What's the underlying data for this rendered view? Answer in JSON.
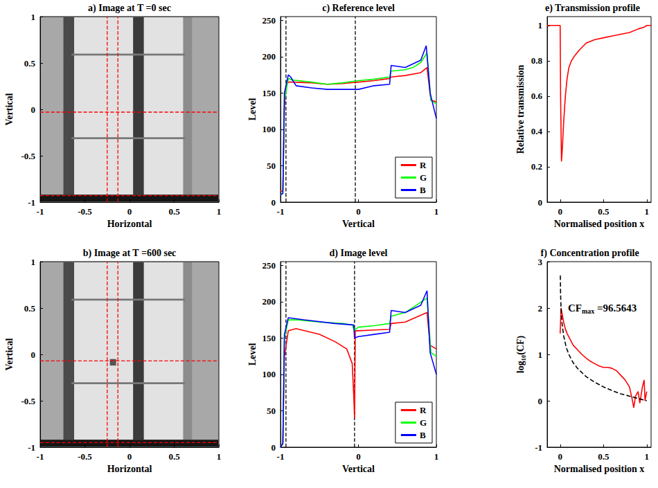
{
  "chart_data": [
    {
      "type": "image",
      "title": "a) Image at T =0 sec",
      "xlabel": "Horizontal",
      "ylabel": "Vertical",
      "xlim": [
        -1,
        1
      ],
      "ylim": [
        -1,
        1
      ],
      "xticks": [
        -1,
        -0.5,
        0,
        0.5,
        1
      ],
      "yticks": [
        -1,
        -0.5,
        0,
        0.5,
        1
      ],
      "grid": false,
      "guides": {
        "vlines": [
          -0.25,
          -0.13
        ],
        "hlines": [
          -0.03,
          -0.93
        ],
        "color": "#ff0000",
        "line_style": "dashed"
      }
    },
    {
      "type": "image",
      "title": "b) Image at T =600 sec",
      "xlabel": "Horizontal",
      "ylabel": "Vertical",
      "xlim": [
        -1,
        1
      ],
      "ylim": [
        -1,
        1
      ],
      "xticks": [
        -1,
        -0.5,
        0,
        0.5,
        1
      ],
      "yticks": [
        -1,
        -0.5,
        0,
        0.5,
        1
      ],
      "grid": false,
      "guides": {
        "vlines": [
          -0.25,
          -0.13
        ],
        "hlines": [
          -0.07,
          -0.95
        ],
        "color": "#ff0000",
        "line_style": "dashed"
      }
    },
    {
      "type": "line",
      "title": "c) Reference level",
      "xlabel": "Vertical",
      "ylabel": "Level",
      "xlim": [
        -1,
        1
      ],
      "ylim": [
        0,
        255
      ],
      "xticks": [
        -1,
        0,
        1
      ],
      "yticks": [
        0,
        50,
        100,
        150,
        200,
        250
      ],
      "grid": false,
      "legend": "lower right",
      "guides": {
        "vlines": [
          -0.93,
          -0.04
        ],
        "color": "#000000",
        "line_style": "dashed"
      },
      "series": [
        {
          "name": "R",
          "color": "#ff0000",
          "x": [
            -1,
            -0.97,
            -0.95,
            -0.93,
            -0.9,
            -0.85,
            -0.6,
            -0.4,
            -0.2,
            0,
            0.2,
            0.4,
            0.42,
            0.6,
            0.8,
            0.88,
            0.93,
            1
          ],
          "values": [
            15,
            15,
            130,
            160,
            165,
            165,
            164,
            162,
            163,
            165,
            167,
            170,
            172,
            174,
            178,
            185,
            140,
            138
          ]
        },
        {
          "name": "G",
          "color": "#00ff00",
          "x": [
            -1,
            -0.97,
            -0.95,
            -0.9,
            -0.85,
            -0.6,
            -0.4,
            -0.2,
            0,
            0.2,
            0.4,
            0.42,
            0.6,
            0.7,
            0.8,
            0.88,
            0.93,
            1
          ],
          "values": [
            10,
            12,
            140,
            170,
            168,
            165,
            162,
            164,
            167,
            169,
            172,
            180,
            182,
            185,
            192,
            205,
            140,
            135
          ]
        },
        {
          "name": "B",
          "color": "#0000ff",
          "x": [
            -1,
            -0.97,
            -0.95,
            -0.9,
            -0.87,
            -0.8,
            -0.6,
            -0.4,
            -0.2,
            0,
            0.2,
            0.4,
            0.42,
            0.6,
            0.8,
            0.87,
            0.92,
            1
          ],
          "values": [
            10,
            12,
            150,
            175,
            172,
            160,
            157,
            155,
            155,
            155,
            160,
            162,
            188,
            185,
            195,
            215,
            150,
            115
          ]
        }
      ]
    },
    {
      "type": "line",
      "title": "d) Image level",
      "xlabel": "Vertical",
      "ylabel": "Level",
      "xlim": [
        -1,
        1
      ],
      "ylim": [
        0,
        255
      ],
      "xticks": [
        -1,
        0,
        1
      ],
      "yticks": [
        0,
        50,
        100,
        150,
        200,
        250
      ],
      "grid": false,
      "legend": "lower right",
      "guides": {
        "vlines": [
          -0.93,
          -0.05
        ],
        "color": "#000000",
        "line_style": "dashed"
      },
      "series": [
        {
          "name": "R",
          "color": "#ff0000",
          "x": [
            -1,
            -0.97,
            -0.95,
            -0.9,
            -0.8,
            -0.5,
            -0.3,
            -0.15,
            -0.08,
            -0.06,
            -0.05,
            -0.04,
            0,
            0.2,
            0.4,
            0.42,
            0.6,
            0.88,
            0.92,
            1
          ],
          "values": [
            0,
            5,
            125,
            160,
            163,
            155,
            145,
            135,
            115,
            70,
            40,
            160,
            160,
            161,
            162,
            170,
            172,
            185,
            140,
            135
          ]
        },
        {
          "name": "G",
          "color": "#00ff00",
          "x": [
            -1,
            -0.97,
            -0.95,
            -0.9,
            -0.8,
            -0.5,
            -0.2,
            -0.08,
            -0.05,
            -0.04,
            0,
            0.2,
            0.4,
            0.42,
            0.6,
            0.88,
            0.93,
            1
          ],
          "values": [
            0,
            5,
            150,
            175,
            175,
            172,
            170,
            168,
            160,
            162,
            165,
            167,
            170,
            180,
            185,
            205,
            130,
            125
          ]
        },
        {
          "name": "B",
          "color": "#0000ff",
          "x": [
            -1,
            -0.97,
            -0.95,
            -0.9,
            -0.7,
            -0.3,
            -0.06,
            -0.05,
            0,
            0.2,
            0.4,
            0.42,
            0.6,
            0.8,
            0.88,
            0.92,
            1
          ],
          "values": [
            0,
            5,
            155,
            178,
            175,
            170,
            168,
            150,
            152,
            155,
            158,
            188,
            185,
            195,
            215,
            130,
            100
          ]
        }
      ]
    },
    {
      "type": "line",
      "title": "e) Transmission profile",
      "xlabel": "Normalised position x",
      "ylabel": "Relative transmission",
      "xlim": [
        -0.15,
        1.05
      ],
      "ylim": [
        0,
        1.05
      ],
      "xticks": [
        0,
        0.5,
        1
      ],
      "yticks": [
        0,
        0.2,
        0.4,
        0.6,
        0.8,
        1
      ],
      "grid": false,
      "series": [
        {
          "color": "#ff0000",
          "line_style": "solid",
          "x": [
            -0.15,
            0,
            0.005,
            0.015,
            0.025,
            0.04,
            0.06,
            0.08,
            0.1,
            0.13,
            0.17,
            0.22,
            0.3,
            0.4,
            0.5,
            0.6,
            0.7,
            0.8,
            0.9,
            0.97,
            1,
            1.05
          ],
          "values": [
            1,
            1,
            0.6,
            0.23,
            0.3,
            0.45,
            0.6,
            0.7,
            0.76,
            0.8,
            0.83,
            0.86,
            0.9,
            0.92,
            0.93,
            0.94,
            0.95,
            0.96,
            0.98,
            0.99,
            1,
            1
          ]
        }
      ]
    },
    {
      "type": "line",
      "title": "f) Concentration profile",
      "xlabel": "Normalised position x",
      "ylabel": "log₁₀(CF)",
      "xlim": [
        -0.15,
        1.05
      ],
      "ylim": [
        -1,
        3
      ],
      "xticks": [
        0,
        0.5,
        1
      ],
      "yticks": [
        -1,
        0,
        1,
        2,
        3
      ],
      "grid": false,
      "annotation": "CFmax =96.5643",
      "annotation_subscript": "max",
      "series": [
        {
          "color": "#ff0000",
          "line_style": "solid",
          "x": [
            0,
            0.01,
            0.02,
            0.04,
            0.06,
            0.08,
            0.1,
            0.15,
            0.2,
            0.25,
            0.3,
            0.35,
            0.4,
            0.45,
            0.5,
            0.55,
            0.6,
            0.65,
            0.7,
            0.75,
            0.8,
            0.83,
            0.85,
            0.87,
            0.9,
            0.92,
            0.95,
            0.97,
            0.98,
            1
          ],
          "values": [
            1.45,
            2.0,
            1.9,
            1.7,
            1.55,
            1.45,
            1.38,
            1.2,
            1.1,
            1.0,
            0.92,
            0.85,
            0.8,
            0.75,
            0.72,
            0.72,
            0.7,
            0.65,
            0.55,
            0.45,
            0.3,
            0.05,
            -0.15,
            0.1,
            0.2,
            -0.05,
            0.3,
            0.45,
            0.0,
            0.2
          ]
        },
        {
          "color": "#000000",
          "line_style": "dashed",
          "x": [
            0.002,
            0.005,
            0.01,
            0.02,
            0.04,
            0.07,
            0.1,
            0.15,
            0.2,
            0.3,
            0.4,
            0.5,
            0.6,
            0.7,
            0.8,
            0.9,
            1
          ],
          "values": [
            2.7,
            2.3,
            2.0,
            1.7,
            1.4,
            1.15,
            1.0,
            0.82,
            0.7,
            0.52,
            0.4,
            0.3,
            0.22,
            0.15,
            0.1,
            0.05,
            0.0
          ]
        }
      ]
    }
  ]
}
